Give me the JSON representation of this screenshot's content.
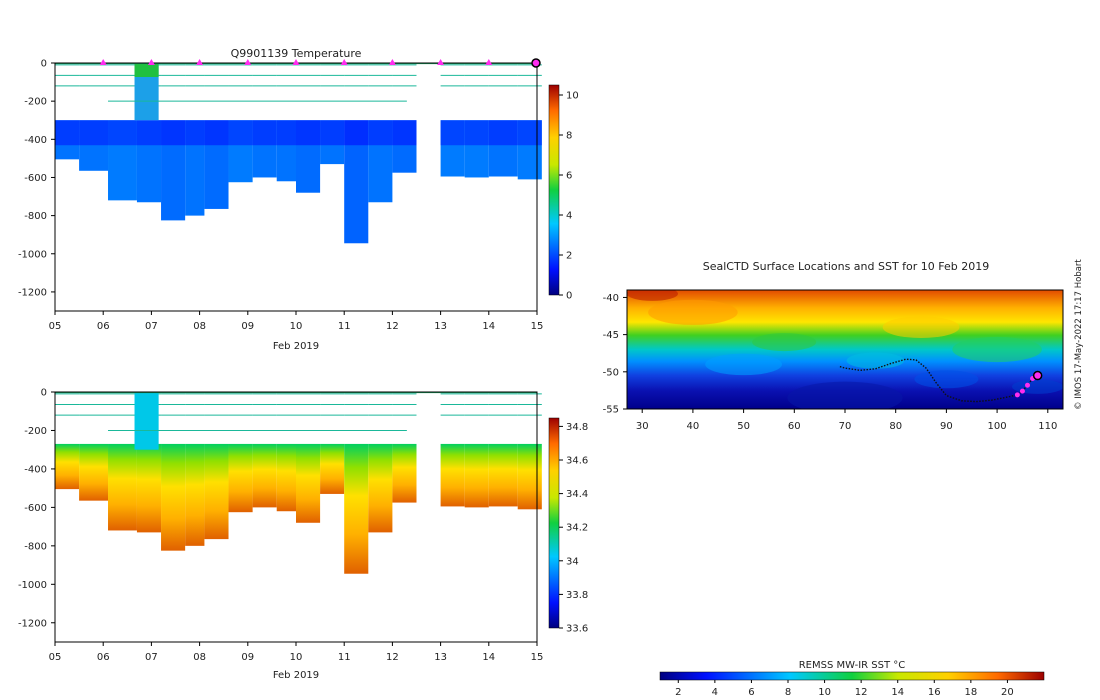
{
  "temperature_title": "Q9901139  Temperature",
  "map_title": "SealCTD Surface Locations and SST for 10 Feb 2019",
  "credit": "© IMOS 17-May-2022 17:17 Hobart",
  "colors": {
    "profile_marker": "#ff2cf0",
    "track": "#111111",
    "frame": "#000000"
  },
  "chart_data": [
    {
      "type": "heatmap",
      "title": "Q9901139  Temperature",
      "xlabel": "Feb 2019",
      "ylabel": "",
      "x_ticks": [
        "05",
        "06",
        "07",
        "08",
        "09",
        "10",
        "11",
        "12",
        "13",
        "14",
        "15"
      ],
      "xlim": [
        5,
        15
      ],
      "ylim": [
        -1300,
        0
      ],
      "y_ticks": [
        0,
        -200,
        -400,
        -600,
        -800,
        -1000,
        -1200
      ],
      "colorbar": {
        "min": 0,
        "max": 10.5,
        "ticks": [
          0,
          2,
          4,
          6,
          8,
          10
        ]
      },
      "profile_markers_day": [
        6,
        7,
        8,
        9,
        10,
        11,
        12,
        13,
        14,
        15
      ],
      "profiles": [
        {
          "day": 5.0,
          "max_depth": -505,
          "deep_value": 2.5
        },
        {
          "day": 5.5,
          "max_depth": -565,
          "deep_value": 2.5
        },
        {
          "day": 6.1,
          "max_depth": -720,
          "deep_value": 2.6
        },
        {
          "day": 6.7,
          "max_depth": -730,
          "deep_value": 2.5
        },
        {
          "day": 7.2,
          "max_depth": -825,
          "deep_value": 2.4
        },
        {
          "day": 7.7,
          "max_depth": -800,
          "deep_value": 2.5
        },
        {
          "day": 8.1,
          "max_depth": -765,
          "deep_value": 2.4
        },
        {
          "day": 8.6,
          "max_depth": -625,
          "deep_value": 2.6
        },
        {
          "day": 9.1,
          "max_depth": -600,
          "deep_value": 2.5
        },
        {
          "day": 9.6,
          "max_depth": -620,
          "deep_value": 2.5
        },
        {
          "day": 10.0,
          "max_depth": -680,
          "deep_value": 2.4
        },
        {
          "day": 10.5,
          "max_depth": -530,
          "deep_value": 2.5
        },
        {
          "day": 11.0,
          "max_depth": -945,
          "deep_value": 2.3
        },
        {
          "day": 11.5,
          "max_depth": -730,
          "deep_value": 2.5
        },
        {
          "day": 12.0,
          "max_depth": -575,
          "deep_value": 2.4
        },
        {
          "day": 13.0,
          "max_depth": -595,
          "deep_value": 2.6
        },
        {
          "day": 13.5,
          "max_depth": -600,
          "deep_value": 2.6
        },
        {
          "day": 14.0,
          "max_depth": -595,
          "deep_value": 2.5
        },
        {
          "day": 14.6,
          "max_depth": -610,
          "deep_value": 2.6
        }
      ]
    },
    {
      "type": "heatmap",
      "title": "",
      "xlabel": "Feb 2019",
      "ylabel": "",
      "x_ticks": [
        "05",
        "06",
        "07",
        "08",
        "09",
        "10",
        "11",
        "12",
        "13",
        "14",
        "15"
      ],
      "xlim": [
        5,
        15
      ],
      "ylim": [
        -1300,
        0
      ],
      "y_ticks": [
        0,
        -200,
        -400,
        -600,
        -800,
        -1000,
        -1200
      ],
      "colorbar": {
        "min": 33.6,
        "max": 34.85,
        "ticks": [
          33.6,
          33.8,
          34,
          34.2,
          34.4,
          34.6,
          34.8
        ]
      }
    },
    {
      "type": "heatmap",
      "title": "SealCTD Surface Locations and SST for 10 Feb 2019",
      "x_ticks": [
        30,
        40,
        50,
        60,
        70,
        80,
        90,
        100,
        110
      ],
      "y_ticks": [
        -40,
        -45,
        -50,
        -55
      ],
      "xlim": [
        27,
        113
      ],
      "ylim": [
        -55,
        -39
      ],
      "colorbar": {
        "label": "REMSS MW-IR SST °C",
        "min": 1,
        "max": 22,
        "ticks": [
          2,
          4,
          6,
          8,
          10,
          12,
          14,
          16,
          18,
          20
        ]
      },
      "track_lon": [
        69,
        70,
        73,
        76,
        79,
        82,
        84,
        86,
        88,
        90,
        93,
        96,
        99,
        102,
        104,
        105,
        106,
        107
      ],
      "track_lat": [
        -49.3,
        -49.5,
        -49.8,
        -49.6,
        -48.9,
        -48.3,
        -48.4,
        -49.5,
        -51.5,
        -53.2,
        -53.9,
        -54.0,
        -53.8,
        -53.4,
        -53.1,
        -52.6,
        -51.8,
        -50.9
      ],
      "last_position": {
        "lon": 108,
        "lat": -50.5
      }
    }
  ]
}
